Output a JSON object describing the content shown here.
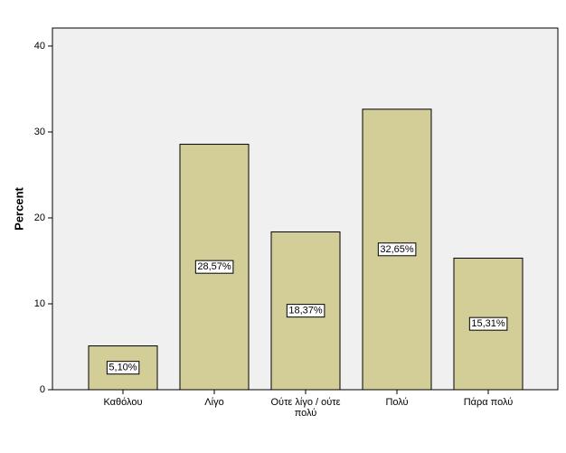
{
  "chart_data": {
    "type": "bar",
    "y_label": "Percent",
    "categories": [
      "Καθόλου",
      "Λίγο",
      "Ούτε λίγο / ούτε πολύ",
      "Πολύ",
      "Πάρα πολύ"
    ],
    "values": [
      5.1,
      28.57,
      18.37,
      32.65,
      15.31
    ],
    "value_labels": [
      "5,10%",
      "28,57%",
      "18,37%",
      "32,65%",
      "15,31%"
    ],
    "color": "#d3ce97",
    "ylim": [
      0,
      42.1
    ],
    "yticks": [
      0,
      10,
      20,
      30,
      40
    ],
    "grid": false
  }
}
